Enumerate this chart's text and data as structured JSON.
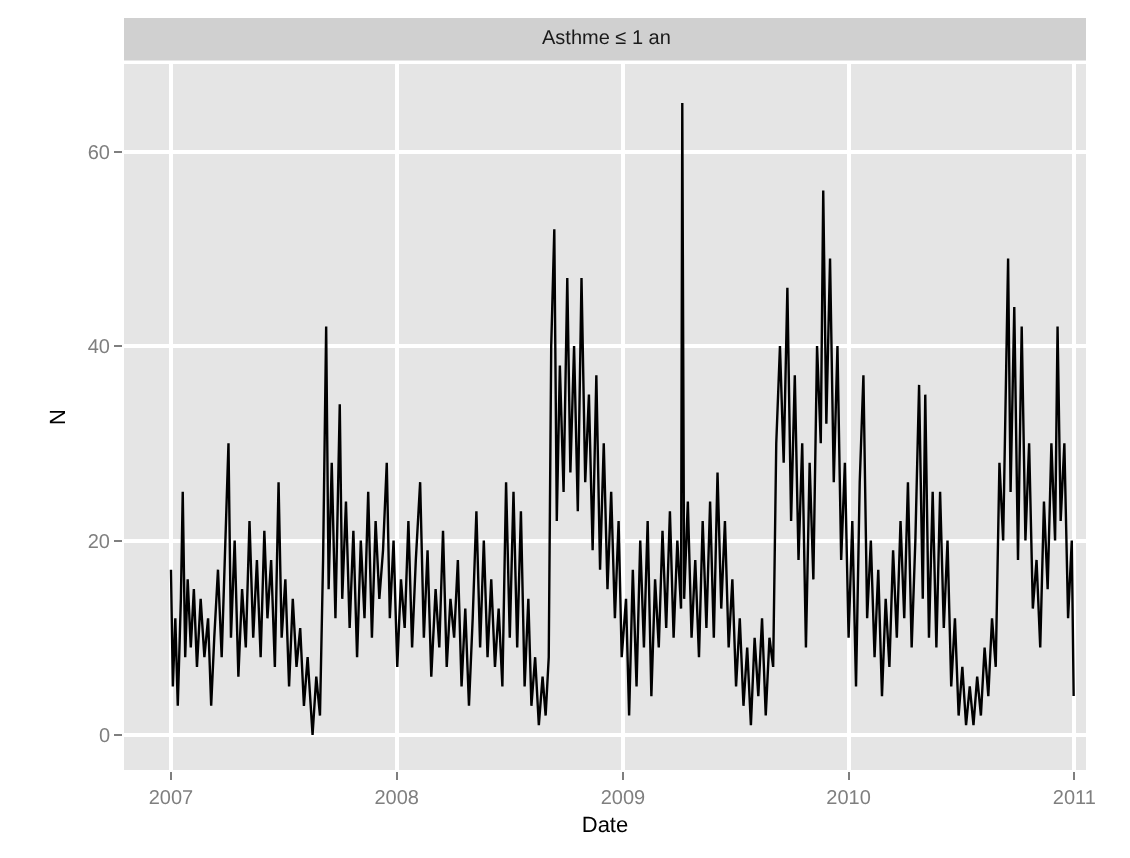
{
  "chart_data": {
    "type": "line",
    "title": "Asthme ≤ 1 an",
    "xlabel": "Date",
    "ylabel": "N",
    "xlim": [
      "2006-10-17",
      "2011-01-20"
    ],
    "ylim": [
      -3.6,
      69
    ],
    "xticks": [
      "2007",
      "2008",
      "2009",
      "2010",
      "2011"
    ],
    "yticks": [
      0,
      20,
      40,
      60
    ],
    "grid": true,
    "marker": "none",
    "line_style": "solid",
    "series": [
      {
        "color": "#000000",
        "x": [
          "2007-01-01",
          "2007-01-04",
          "2007-01-08",
          "2007-01-12",
          "2007-01-17",
          "2007-01-20",
          "2007-01-24",
          "2007-01-28",
          "2007-02-02",
          "2007-02-07",
          "2007-02-12",
          "2007-02-18",
          "2007-02-24",
          "2007-03-02",
          "2007-03-07",
          "2007-03-12",
          "2007-03-18",
          "2007-03-24",
          "2007-03-30",
          "2007-04-04",
          "2007-04-08",
          "2007-04-14",
          "2007-04-20",
          "2007-04-26",
          "2007-05-02",
          "2007-05-08",
          "2007-05-14",
          "2007-05-20",
          "2007-05-26",
          "2007-06-01",
          "2007-06-06",
          "2007-06-12",
          "2007-06-18",
          "2007-06-24",
          "2007-06-29",
          "2007-07-05",
          "2007-07-11",
          "2007-07-17",
          "2007-07-23",
          "2007-07-29",
          "2007-08-04",
          "2007-08-10",
          "2007-08-18",
          "2007-08-24",
          "2007-08-30",
          "2007-09-04",
          "2007-09-09",
          "2007-09-13",
          "2007-09-18",
          "2007-09-24",
          "2007-10-01",
          "2007-10-05",
          "2007-10-11",
          "2007-10-17",
          "2007-10-23",
          "2007-10-29",
          "2007-11-04",
          "2007-11-10",
          "2007-11-16",
          "2007-11-22",
          "2007-11-28",
          "2007-12-04",
          "2007-12-10",
          "2007-12-16",
          "2007-12-21",
          "2007-12-27",
          "2008-01-02",
          "2008-01-08",
          "2008-01-14",
          "2008-01-20",
          "2008-01-26",
          "2008-02-01",
          "2008-02-08",
          "2008-02-14",
          "2008-02-20",
          "2008-02-26",
          "2008-03-04",
          "2008-03-10",
          "2008-03-16",
          "2008-03-22",
          "2008-03-28",
          "2008-04-03",
          "2008-04-09",
          "2008-04-15",
          "2008-04-21",
          "2008-04-27",
          "2008-05-03",
          "2008-05-09",
          "2008-05-15",
          "2008-05-21",
          "2008-05-27",
          "2008-06-02",
          "2008-06-08",
          "2008-06-14",
          "2008-06-20",
          "2008-06-26",
          "2008-07-02",
          "2008-07-08",
          "2008-07-14",
          "2008-07-20",
          "2008-07-26",
          "2008-08-01",
          "2008-08-06",
          "2008-08-12",
          "2008-08-18",
          "2008-08-24",
          "2008-08-29",
          "2008-09-03",
          "2008-09-07",
          "2008-09-12",
          "2008-09-16",
          "2008-09-21",
          "2008-09-27",
          "2008-10-03",
          "2008-10-08",
          "2008-10-14",
          "2008-10-20",
          "2008-10-26",
          "2008-11-01",
          "2008-11-07",
          "2008-11-13",
          "2008-11-19",
          "2008-11-25",
          "2008-12-01",
          "2008-12-07",
          "2008-12-13",
          "2008-12-19",
          "2008-12-25",
          "2008-12-30",
          "2009-01-06",
          "2009-01-11",
          "2009-01-17",
          "2009-01-23",
          "2009-01-29",
          "2009-02-04",
          "2009-02-10",
          "2009-02-16",
          "2009-02-22",
          "2009-02-28",
          "2009-03-06",
          "2009-03-12",
          "2009-03-18",
          "2009-03-24",
          "2009-03-30",
          "2009-04-05",
          "2009-04-07",
          "2009-04-10",
          "2009-04-16",
          "2009-04-22",
          "2009-04-28",
          "2009-05-04",
          "2009-05-10",
          "2009-05-16",
          "2009-05-22",
          "2009-05-28",
          "2009-06-03",
          "2009-06-09",
          "2009-06-15",
          "2009-06-21",
          "2009-06-27",
          "2009-07-03",
          "2009-07-09",
          "2009-07-15",
          "2009-07-21",
          "2009-07-27",
          "2009-08-02",
          "2009-08-08",
          "2009-08-14",
          "2009-08-20",
          "2009-08-26",
          "2009-09-01",
          "2009-09-06",
          "2009-09-12",
          "2009-09-18",
          "2009-09-24",
          "2009-09-30",
          "2009-10-06",
          "2009-10-12",
          "2009-10-18",
          "2009-10-24",
          "2009-10-30",
          "2009-11-05",
          "2009-11-11",
          "2009-11-17",
          "2009-11-21",
          "2009-11-26",
          "2009-12-02",
          "2009-12-08",
          "2009-12-14",
          "2009-12-20",
          "2009-12-26",
          "2010-01-01",
          "2010-01-07",
          "2010-01-13",
          "2010-01-19",
          "2010-01-25",
          "2010-01-31",
          "2010-02-06",
          "2010-02-12",
          "2010-02-18",
          "2010-02-24",
          "2010-03-02",
          "2010-03-08",
          "2010-03-14",
          "2010-03-20",
          "2010-03-26",
          "2010-04-01",
          "2010-04-07",
          "2010-04-13",
          "2010-04-19",
          "2010-04-25",
          "2010-05-01",
          "2010-05-05",
          "2010-05-11",
          "2010-05-17",
          "2010-05-23",
          "2010-05-29",
          "2010-06-04",
          "2010-06-10",
          "2010-06-16",
          "2010-06-22",
          "2010-06-28",
          "2010-07-04",
          "2010-07-10",
          "2010-07-16",
          "2010-07-22",
          "2010-07-28",
          "2010-08-03",
          "2010-08-09",
          "2010-08-15",
          "2010-08-21",
          "2010-08-27",
          "2010-09-02",
          "2010-09-08",
          "2010-09-16",
          "2010-09-20",
          "2010-09-26",
          "2010-10-02",
          "2010-10-08",
          "2010-10-14",
          "2010-10-20",
          "2010-10-26",
          "2010-11-01",
          "2010-11-07",
          "2010-11-13",
          "2010-11-19",
          "2010-11-25",
          "2010-12-01",
          "2010-12-05",
          "2010-12-10",
          "2010-12-16",
          "2010-12-22",
          "2010-12-28",
          "2010-12-31"
        ],
        "values": [
          17,
          5,
          12,
          3,
          14,
          25,
          8,
          16,
          9,
          15,
          7,
          14,
          8,
          12,
          3,
          10,
          17,
          8,
          20,
          30,
          10,
          20,
          6,
          15,
          9,
          22,
          10,
          18,
          8,
          21,
          12,
          18,
          7,
          26,
          10,
          16,
          5,
          14,
          7,
          11,
          3,
          8,
          0,
          6,
          2,
          18,
          42,
          15,
          28,
          12,
          34,
          14,
          24,
          11,
          21,
          8,
          20,
          12,
          25,
          10,
          22,
          14,
          19,
          28,
          12,
          20,
          7,
          16,
          11,
          22,
          9,
          18,
          26,
          10,
          19,
          6,
          15,
          9,
          21,
          7,
          14,
          10,
          18,
          5,
          13,
          3,
          12,
          23,
          9,
          20,
          8,
          16,
          7,
          13,
          5,
          26,
          10,
          25,
          9,
          23,
          5,
          14,
          3,
          8,
          1,
          6,
          2,
          8,
          40,
          52,
          22,
          38,
          25,
          47,
          27,
          40,
          23,
          47,
          26,
          35,
          19,
          37,
          17,
          30,
          15,
          25,
          12,
          22,
          8,
          14,
          2,
          17,
          5,
          20,
          9,
          22,
          4,
          16,
          9,
          21,
          11,
          23,
          10,
          20,
          13,
          65,
          14,
          24,
          10,
          18,
          8,
          22,
          11,
          24,
          10,
          27,
          13,
          22,
          9,
          16,
          5,
          12,
          3,
          9,
          1,
          10,
          4,
          12,
          2,
          10,
          7,
          30,
          40,
          28,
          46,
          22,
          37,
          18,
          30,
          9,
          28,
          16,
          40,
          30,
          56,
          32,
          49,
          26,
          40,
          18,
          28,
          10,
          22,
          5,
          26,
          37,
          12,
          20,
          8,
          17,
          4,
          14,
          7,
          19,
          10,
          22,
          12,
          26,
          9,
          20,
          36,
          14,
          35,
          10,
          25,
          9,
          25,
          11,
          20,
          5,
          12,
          2,
          7,
          1,
          5,
          1,
          6,
          2,
          9,
          4,
          12,
          7,
          28,
          20,
          49,
          25,
          44,
          18,
          42,
          20,
          30,
          13,
          18,
          9,
          24,
          15,
          30,
          20,
          42,
          22,
          30,
          12,
          20,
          4
        ]
      }
    ]
  }
}
